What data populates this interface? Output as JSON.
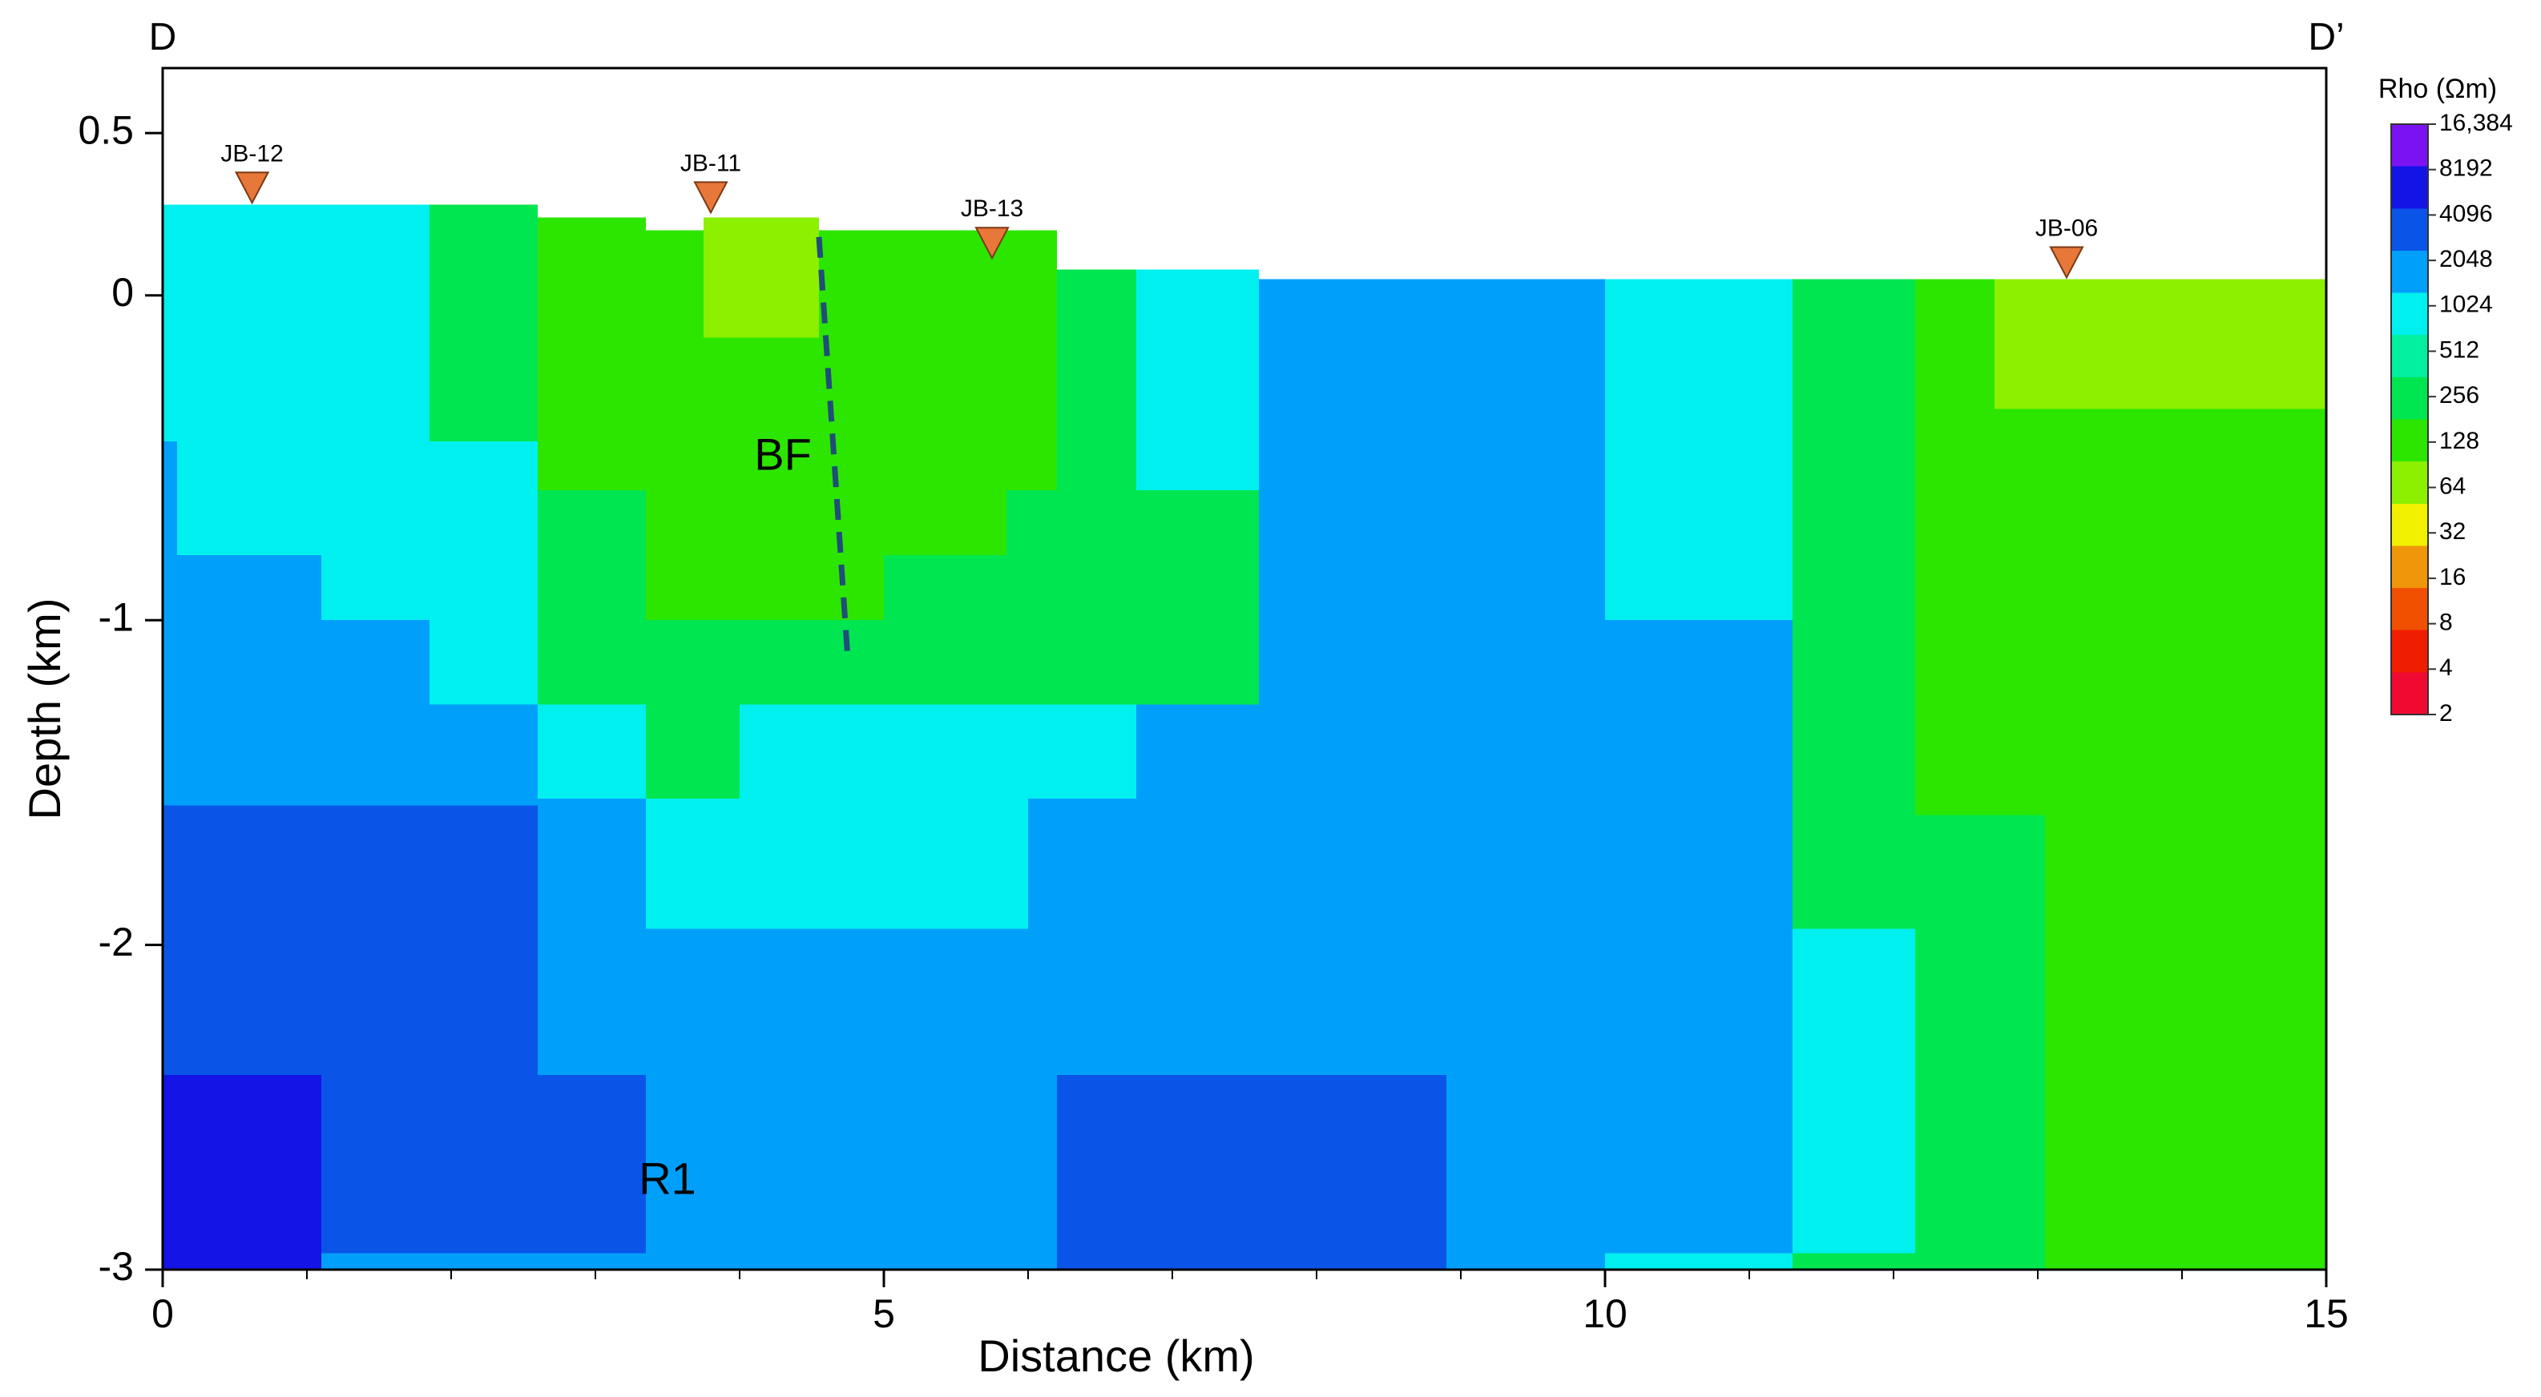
{
  "chart_data": {
    "type": "heatmap",
    "title": "",
    "xlabel": "Distance (km)",
    "ylabel": "Depth (km)",
    "xlim": [
      0,
      15
    ],
    "ylim": [
      -3,
      0.7
    ],
    "x_ticks": [
      0,
      5,
      10,
      15
    ],
    "x_tick_labels": [
      "0",
      "5",
      "10",
      "15"
    ],
    "y_ticks": [
      0.5,
      0,
      -1,
      -2,
      -3
    ],
    "y_tick_labels": [
      "0.5",
      "0",
      "-1",
      "-2",
      "-3"
    ],
    "corner_labels": {
      "left": "D",
      "right": "D’"
    },
    "colorbar": {
      "title": "Rho (Ωm)",
      "scale": "log2",
      "labels": [
        "16,384",
        "8192",
        "4096",
        "2048",
        "1024",
        "512",
        "256",
        "128",
        "64",
        "32",
        "16",
        "8",
        "4",
        "2"
      ],
      "values": [
        16384,
        8192,
        4096,
        2048,
        1024,
        512,
        256,
        128,
        64,
        32,
        16,
        8,
        4,
        2
      ],
      "colors": [
        "#7a12f2",
        "#1414e6",
        "#0a55e8",
        "#00a0fa",
        "#00f0f0",
        "#00f0a0",
        "#00e650",
        "#2ce600",
        "#8cf000",
        "#f0f000",
        "#f0960a",
        "#f05000",
        "#f01e00",
        "#f00a32"
      ]
    },
    "stations": [
      {
        "name": "JB-12",
        "x": 0.62,
        "y": 0.28
      },
      {
        "name": "JB-11",
        "x": 3.8,
        "y": 0.25
      },
      {
        "name": "JB-13",
        "x": 5.75,
        "y": 0.11
      },
      {
        "name": "JB-06",
        "x": 13.2,
        "y": 0.05
      }
    ],
    "annotations": [
      {
        "text": "BF",
        "x": 4.3,
        "y": -0.5
      },
      {
        "text": "R1",
        "x": 3.5,
        "y": -2.73
      }
    ],
    "fault_line": {
      "x1": 4.55,
      "y1": 0.18,
      "x2": 4.75,
      "y2": -1.12
    },
    "model_cells": [
      {
        "x0": 0,
        "x1": 15,
        "y0": -3.0,
        "y1": 0.05,
        "rho": 2048
      },
      {
        "x0": 0,
        "x1": 1.85,
        "y0": -0.45,
        "y1": 0.28,
        "rho": 1024
      },
      {
        "x0": 0.1,
        "x1": 1.85,
        "y0": -0.8,
        "y1": -0.45,
        "rho": 1024
      },
      {
        "x0": 1.1,
        "x1": 2.6,
        "y0": -1.0,
        "y1": -0.45,
        "rho": 1024
      },
      {
        "x0": 1.85,
        "x1": 2.6,
        "y0": -1.26,
        "y1": -1.0,
        "rho": 1024
      },
      {
        "x0": 1.85,
        "x1": 2.6,
        "y0": -0.45,
        "y1": 0.28,
        "rho": 256
      },
      {
        "x0": 2.6,
        "x1": 4.0,
        "y0": -1.55,
        "y1": -1.26,
        "rho": 1024
      },
      {
        "x0": 4.0,
        "x1": 6.0,
        "y0": -1.95,
        "y1": -1.26,
        "rho": 1024
      },
      {
        "x0": 3.35,
        "x1": 4.0,
        "y0": -1.95,
        "y1": -1.55,
        "rho": 1024
      },
      {
        "x0": 6.0,
        "x1": 6.75,
        "y0": -1.55,
        "y1": -1.26,
        "rho": 1024
      },
      {
        "x0": 5.85,
        "x1": 6.75,
        "y0": -1.26,
        "y1": -0.8,
        "rho": 1024
      },
      {
        "x0": 6.75,
        "x1": 7.6,
        "y0": -1.26,
        "y1": 0.08,
        "rho": 1024
      },
      {
        "x0": 2.6,
        "x1": 7.6,
        "y0": -1.26,
        "y1": -0.6,
        "rho": 256
      },
      {
        "x0": 2.6,
        "x1": 3.35,
        "y0": -0.6,
        "y1": 0.24,
        "rho": 128
      },
      {
        "x0": 3.35,
        "x1": 6.2,
        "y0": -0.6,
        "y1": 0.2,
        "rho": 128
      },
      {
        "x0": 6.2,
        "x1": 6.75,
        "y0": -0.6,
        "y1": 0.08,
        "rho": 256
      },
      {
        "x0": 3.35,
        "x1": 5.0,
        "y0": -1.0,
        "y1": -0.6,
        "rho": 128
      },
      {
        "x0": 5.0,
        "x1": 5.85,
        "y0": -0.8,
        "y1": -0.6,
        "rho": 128
      },
      {
        "x0": 3.35,
        "x1": 4.0,
        "y0": -1.55,
        "y1": -1.26,
        "rho": 256
      },
      {
        "x0": 3.75,
        "x1": 4.55,
        "y0": -0.13,
        "y1": 0.24,
        "rho": 64
      },
      {
        "x0": 10.0,
        "x1": 11.3,
        "y0": -1.0,
        "y1": 0.05,
        "rho": 1024
      },
      {
        "x0": 11.3,
        "x1": 15,
        "y0": -3.0,
        "y1": 0.05,
        "rho": 128
      },
      {
        "x0": 11.3,
        "x1": 12.15,
        "y0": -3.0,
        "y1": 0.05,
        "rho": 256
      },
      {
        "x0": 11.3,
        "x1": 12.15,
        "y0": -2.95,
        "y1": -1.95,
        "rho": 1024
      },
      {
        "x0": 12.15,
        "x1": 13.05,
        "y0": -3.0,
        "y1": -1.6,
        "rho": 256
      },
      {
        "x0": 12.7,
        "x1": 15,
        "y0": -0.35,
        "y1": 0.05,
        "rho": 64
      },
      {
        "x0": 0,
        "x1": 2.6,
        "y0": -2.4,
        "y1": -1.57,
        "rho": 4096
      },
      {
        "x0": 0,
        "x1": 3.35,
        "y0": -2.95,
        "y1": -2.4,
        "rho": 4096
      },
      {
        "x0": 0,
        "x1": 1.1,
        "y0": -3.0,
        "y1": -2.4,
        "rho": 8192
      },
      {
        "x0": 6.2,
        "x1": 8.9,
        "y0": -3.0,
        "y1": -2.4,
        "rho": 4096
      },
      {
        "x0": 10.0,
        "x1": 11.3,
        "y0": -3.0,
        "y1": -2.95,
        "rho": 1024
      }
    ]
  }
}
